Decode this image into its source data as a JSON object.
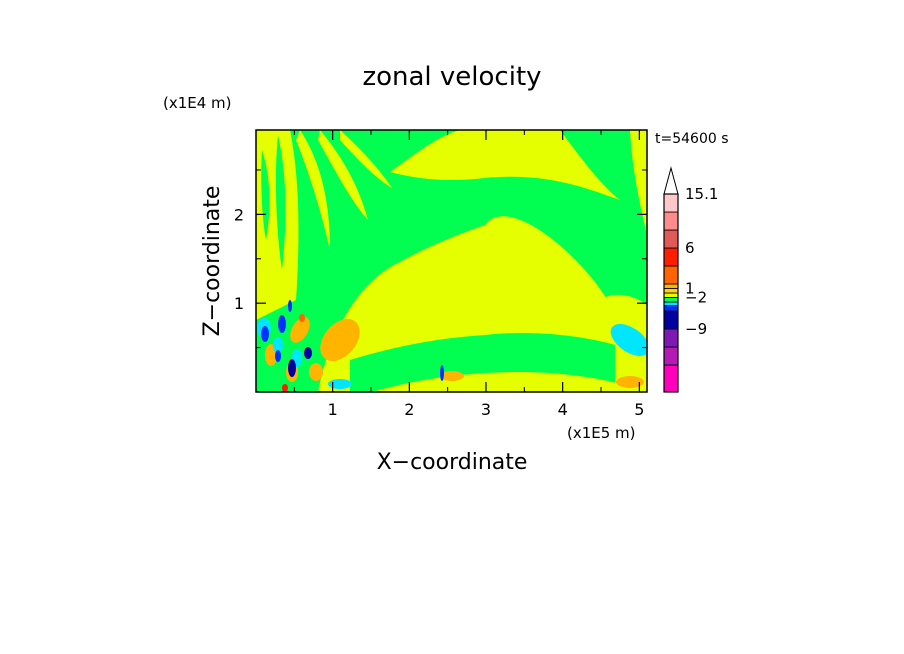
{
  "chart_data": {
    "type": "heatmap",
    "title": "zonal velocity",
    "time_label": "t=54600 s",
    "xlabel": "X−coordinate",
    "ylabel": "Z−coordinate",
    "x_scale_label": "(x1E5 m)",
    "y_scale_label": "(x1E4 m)",
    "x_ticks": [
      "1",
      "2",
      "3",
      "4",
      "5"
    ],
    "x_tick_values": [
      1,
      2,
      3,
      4,
      5
    ],
    "y_ticks": [
      "1",
      "2"
    ],
    "y_tick_values": [
      1,
      2
    ],
    "xlim": [
      0,
      5.1
    ],
    "ylim": [
      0,
      2.95
    ],
    "colorbar": {
      "labels": [
        {
          "text": "15.1",
          "value": 15.1
        },
        {
          "text": "6",
          "value": 6
        },
        {
          "text": "1",
          "value": 1
        },
        {
          "text": "−2",
          "value": -2
        },
        {
          "text": "−9",
          "value": -9
        }
      ],
      "colors": [
        "#ff00bb",
        "#b41ab4",
        "#7d1ab4",
        "#0000a0",
        "#0032ff",
        "#00e6ff",
        "#00ff50",
        "#e6ff00",
        "#ffd200",
        "#ffb400",
        "#ff6400",
        "#ff1e00",
        "#e15a5a",
        "#ff8c8c",
        "#ffc8c8",
        "#ffffff"
      ],
      "block_weights": [
        3,
        2,
        2,
        2,
        0.6,
        0.4,
        0.5,
        0.5,
        0.5,
        0.5,
        2,
        2,
        2,
        2,
        2,
        2
      ]
    },
    "colors": {
      "green": "#00ff50",
      "yellow": "#e6ff00",
      "orange": "#ffb400",
      "cyan": "#00e6ff",
      "blue": "#0000a0",
      "blue2": "#0032ff",
      "red": "#ff1e00"
    }
  }
}
